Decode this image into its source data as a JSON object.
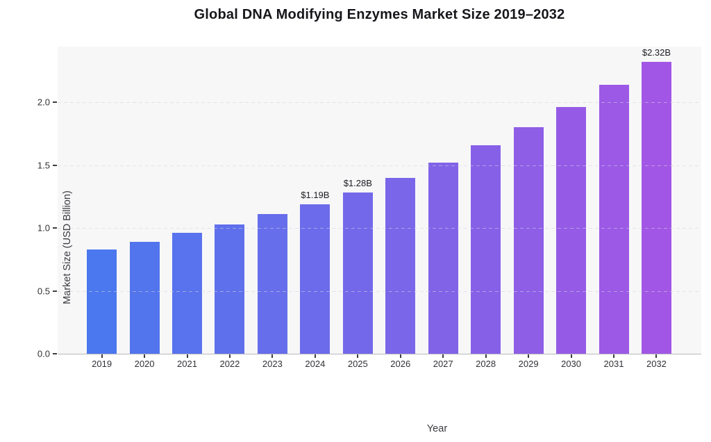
{
  "title": "Global DNA Modifying Enzymes Market Size 2019–2032",
  "chart_data": {
    "type": "bar",
    "title": "Global DNA Modifying Enzymes Market Size 2019–2032",
    "xlabel": "Year",
    "ylabel": "Market Size (USD Billion)",
    "categories": [
      "2019",
      "2020",
      "2021",
      "2022",
      "2023",
      "2024",
      "2025",
      "2026",
      "2027",
      "2028",
      "2029",
      "2030",
      "2031",
      "2032"
    ],
    "values": [
      0.83,
      0.89,
      0.96,
      1.03,
      1.11,
      1.19,
      1.28,
      1.4,
      1.52,
      1.66,
      1.8,
      1.96,
      2.14,
      2.32
    ],
    "value_labels": [
      "",
      "",
      "",
      "",
      "",
      "$1.19B",
      "$1.28B",
      "",
      "",
      "",
      "",
      "",
      "",
      "$2.32B"
    ],
    "ytick_labels": [
      "0.0",
      "0.5",
      "1.0",
      "1.5",
      "2.0"
    ],
    "ytick_values": [
      0.0,
      0.5,
      1.0,
      1.5,
      2.0
    ],
    "ylim": [
      0,
      2.44
    ],
    "grid": "horizontal-dashed",
    "legend": "none",
    "plot_bg": "#f7f7f8",
    "bar_color_start": "#4b78ee",
    "bar_color_end": "#a256e5"
  }
}
